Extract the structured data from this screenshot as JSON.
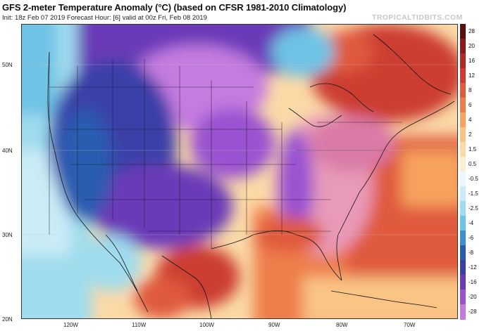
{
  "header": {
    "title": "GFS 2-meter Temperature Anomaly (°C) (based on CFSR 1981-2010 Climatology)",
    "subtitle": "Init: 18z Feb 07 2019   Forecast Hour: [6]   valid at 00z Fri, Feb 08 2019",
    "brand": "TROPICALTIDBITS.COM"
  },
  "latitude_labels": [
    "50N",
    "40N",
    "30N",
    "20N"
  ],
  "longitude_labels": [
    "120W",
    "110W",
    "100W",
    "90W",
    "80W",
    "70W"
  ],
  "legend": {
    "labels": [
      "28",
      "20",
      "16",
      "12",
      "8",
      "6",
      "4",
      "2",
      "1.5",
      "0.5",
      "-0.5",
      "-1.5",
      "-2.5",
      "-4",
      "-6",
      "-8",
      "-12",
      "-16",
      "-20",
      "-28"
    ],
    "colors": [
      "#5a1010",
      "#8b1a1a",
      "#b02828",
      "#cc3d33",
      "#e05a3c",
      "#ee7e4b",
      "#f7a35f",
      "#fac484",
      "#fbdaa8",
      "#fbeed2",
      "#eef7fb",
      "#c9ecf6",
      "#9fdcee",
      "#6ec3e6",
      "#3f8ed0",
      "#2a5cb0",
      "#3b3fa8",
      "#6a3ab8",
      "#9a52d0",
      "#c47be0"
    ],
    "regions": {
      "west_us": "#6a3ab8",
      "northern_plains": "#c47be0",
      "east_us": "#e89ab8",
      "northeast": "#cc3d33",
      "atlantic": "#e05a3c",
      "gulf": "#ee7e4b",
      "pacific": "#9fdcee",
      "mexico": "#cc3d33"
    }
  }
}
